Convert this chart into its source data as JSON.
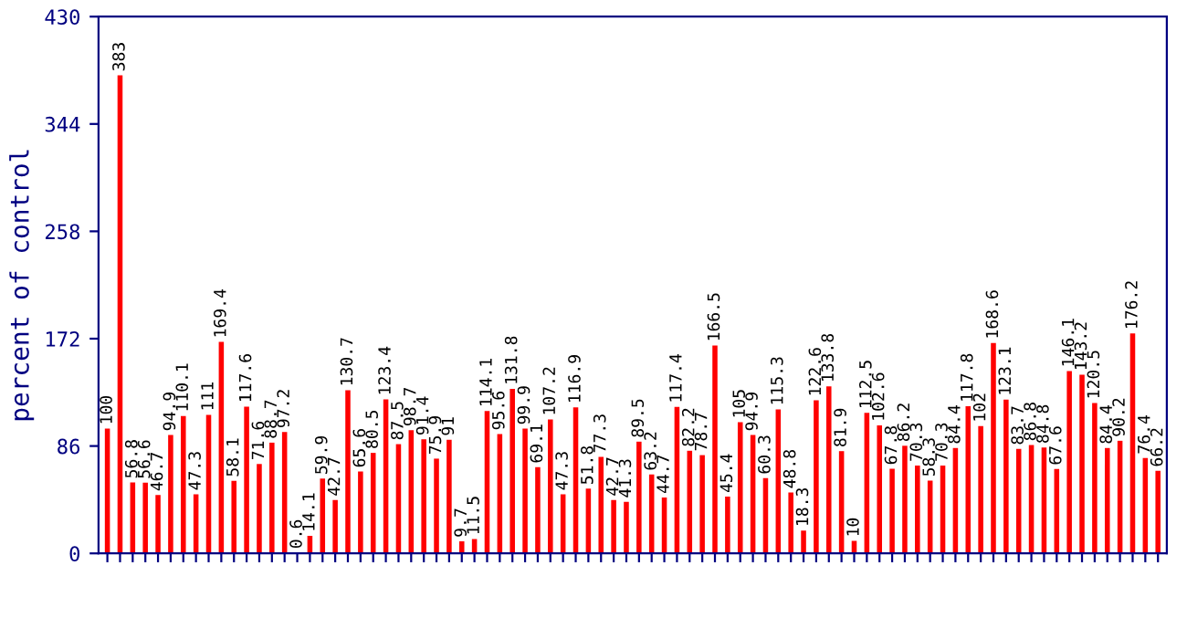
{
  "chart_data": {
    "type": "bar",
    "ylabel": "percent of control",
    "categories": [
      null,
      null,
      null,
      null,
      null,
      null,
      null,
      null,
      null,
      null,
      null,
      null,
      null,
      null,
      null,
      null,
      null,
      null,
      null,
      null,
      null,
      null,
      null,
      null,
      null,
      null,
      null,
      null,
      null,
      null,
      null,
      null,
      null,
      null,
      null,
      null,
      null,
      null,
      null,
      null,
      null,
      null,
      null,
      null,
      null,
      null,
      null,
      null,
      null,
      null,
      null,
      null,
      null,
      null,
      null,
      null,
      null,
      null,
      null,
      null,
      null,
      null,
      null,
      null,
      null,
      null,
      null,
      null,
      null,
      null,
      null,
      null,
      null,
      null,
      null,
      null,
      null,
      null,
      null,
      null,
      null,
      null,
      null,
      null
    ],
    "values": [
      100,
      383,
      56.8,
      56.6,
      46.7,
      94.9,
      110.1,
      47.3,
      111,
      169.4,
      58.1,
      117.6,
      71.6,
      88.7,
      97.2,
      0.6,
      14.1,
      59.9,
      42.7,
      130.7,
      65.6,
      80.5,
      123.4,
      87.5,
      98.7,
      91.4,
      75.9,
      91,
      9.7,
      11.5,
      114.1,
      95.6,
      131.8,
      99.9,
      69.1,
      107.2,
      47.3,
      116.9,
      51.8,
      77.3,
      42.7,
      41.3,
      89.5,
      63.2,
      44.7,
      117.4,
      82.2,
      78.7,
      166.5,
      45.4,
      105,
      94.9,
      60.3,
      115.3,
      48.8,
      18.3,
      122.6,
      133.8,
      81.9,
      10,
      112.5,
      102.6,
      67.8,
      86.2,
      70.3,
      58.3,
      70.3,
      84.4,
      117.8,
      102,
      168.6,
      123.1,
      83.7,
      86.8,
      84.8,
      67.6,
      146.1,
      143.2,
      120.5,
      84.4,
      90.2,
      176.2,
      76.4,
      66.2
    ],
    "color": "#ff0000",
    "ylim": [
      0,
      430
    ],
    "yticks": [
      0,
      86,
      172,
      258,
      344,
      430
    ],
    "data_labels": true,
    "grid": false
  }
}
